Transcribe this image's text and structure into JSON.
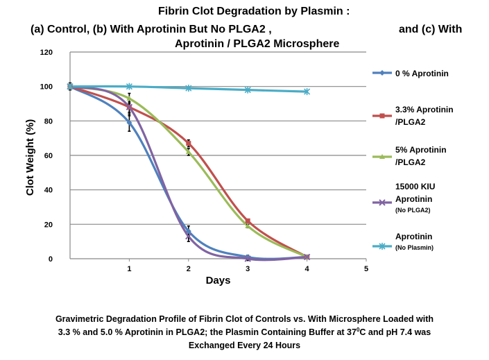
{
  "titles": {
    "line1": "Fibrin Clot Degradation by Plasmin :",
    "line2": "(a)  Control, (b) With Aprotinin But No PLGA2 ,",
    "line2_right": "and (c) With",
    "line3": "Aprotinin / PLGA2 Microsphere"
  },
  "caption": {
    "line1": "Gravimetric Degradation Profile of Fibrin Clot of Controls vs. With Microsphere Loaded with",
    "line2": "3.3 % and 5.0 % Aprotinin  in PLGA2; the Plasmin Containing Buffer at 37",
    "line2_sup": "0",
    "line2_end": "C and pH 7.4 was",
    "line3": "Exchanged  Every 24 Hours"
  },
  "chart_data": {
    "type": "line",
    "xlabel": "Days",
    "ylabel": "Clot Weight (%)",
    "xlim": [
      0,
      5
    ],
    "ylim": [
      0,
      120
    ],
    "xticks": [
      1,
      2,
      3,
      4,
      5
    ],
    "yticks": [
      0,
      20,
      40,
      60,
      80,
      100,
      120
    ],
    "grid": "horizontal",
    "legend": "right",
    "smooth": true,
    "series": [
      {
        "name": "0 % Aprotinin",
        "name_lines": [
          "0 % Aprotinin"
        ],
        "color": "#4F81BD",
        "marker": "diamond",
        "x": [
          0,
          1,
          2,
          3,
          4
        ],
        "y": [
          100,
          79,
          16,
          1,
          1
        ],
        "err": [
          2,
          5,
          3,
          1,
          1
        ]
      },
      {
        "name": "3.3% Aprotinin /PLGA2",
        "name_lines": [
          "3.3% Aprotinin",
          "/PLGA2"
        ],
        "color": "#C0504D",
        "marker": "square",
        "x": [
          0,
          1,
          2,
          3,
          4
        ],
        "y": [
          100,
          88,
          67,
          22,
          1
        ],
        "err": [
          2,
          3,
          2,
          1,
          1
        ]
      },
      {
        "name": "5% Aprotinin /PLGA2",
        "name_lines": [
          "5% Aprotinin",
          "/PLGA2"
        ],
        "color": "#9BBB59",
        "marker": "triangle",
        "x": [
          0,
          1,
          2,
          3,
          4
        ],
        "y": [
          100,
          93,
          62,
          19,
          1
        ],
        "err": [
          2,
          3,
          2,
          1,
          1
        ]
      },
      {
        "name": "15000 KIU Aprotinin (No PLGA2)",
        "name_lines": [
          "15000 KIU",
          "Aprotinin"
        ],
        "name_small": "(No PLGA2)",
        "color": "#8064A2",
        "marker": "x",
        "x": [
          0,
          1,
          2,
          3,
          4
        ],
        "y": [
          100,
          88,
          13,
          0,
          1
        ],
        "err": [
          2,
          5,
          3,
          1,
          1
        ]
      },
      {
        "name": "Aprotinin (No Plasmin)",
        "name_lines": [
          "Aprotinin"
        ],
        "name_small": "(No Plasmin)",
        "color": "#4BACC6",
        "marker": "star",
        "x": [
          0,
          1,
          2,
          3,
          4
        ],
        "y": [
          100,
          100,
          99,
          98,
          97
        ],
        "err": [
          0,
          0,
          0,
          0,
          0
        ]
      }
    ]
  }
}
